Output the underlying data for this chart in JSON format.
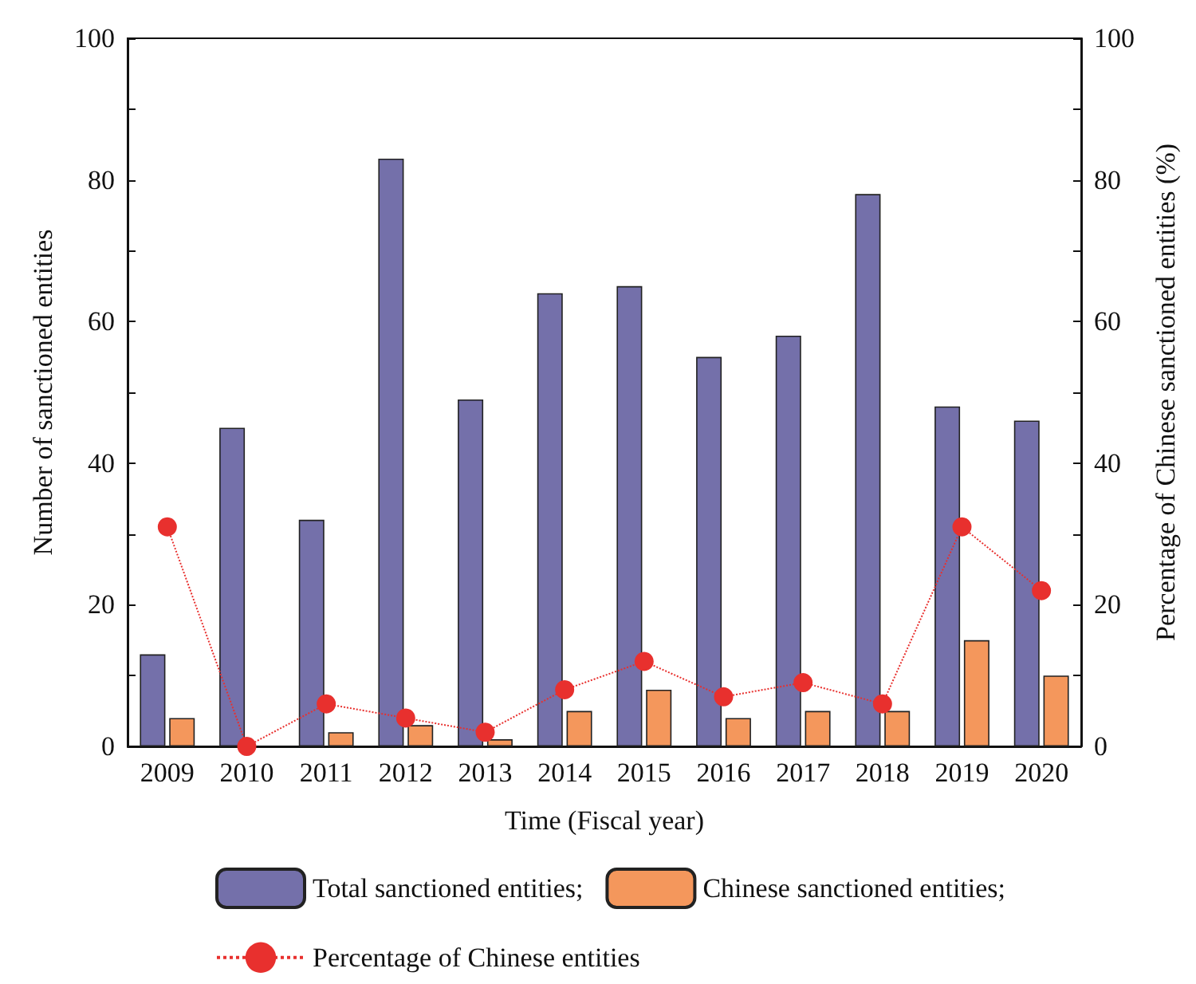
{
  "chart_data": {
    "type": "bar",
    "xlabel": "Time (Fiscal year)",
    "ylabel": "Number of sanctioned entities",
    "y2label": "Percentage of Chinese sanctioned entities (%)",
    "categories": [
      "2009",
      "2010",
      "2011",
      "2012",
      "2013",
      "2014",
      "2015",
      "2016",
      "2017",
      "2018",
      "2019",
      "2020"
    ],
    "series": [
      {
        "name": "Total sanctioned entities;",
        "color": "#7470aa",
        "values": [
          13,
          45,
          32,
          83,
          49,
          64,
          65,
          55,
          58,
          78,
          48,
          46
        ]
      },
      {
        "name": "Chinese sanctioned entities;",
        "color": "#f4975c",
        "values": [
          4,
          0,
          2,
          3,
          1,
          5,
          8,
          4,
          5,
          5,
          15,
          10
        ]
      },
      {
        "name": "Percentage of Chinese entities",
        "type": "line",
        "axis": "y2",
        "color": "#e8302e",
        "marker": "circle",
        "line_style": "dotted",
        "values": [
          31,
          0,
          6,
          4,
          2,
          8,
          12,
          7,
          9,
          6,
          31,
          22
        ]
      }
    ],
    "ylim": [
      0,
      100
    ],
    "yticks": [
      0,
      {
        "value": 10,
        "label": null
      },
      20,
      {
        "value": 30,
        "label": null
      },
      40,
      {
        "value": 50,
        "label": null
      },
      60,
      {
        "value": 70,
        "label": null
      },
      80,
      {
        "value": 90,
        "label": null
      },
      100
    ],
    "y2lim": [
      0,
      100
    ],
    "y2ticks": [
      0,
      {
        "value": 10,
        "label": null
      },
      20,
      {
        "value": 30,
        "label": null
      },
      40,
      {
        "value": 50,
        "label": null
      },
      60,
      {
        "value": 70,
        "label": null
      },
      80,
      {
        "value": 90,
        "label": null
      },
      100
    ],
    "grid": false,
    "legend": "bottom"
  }
}
